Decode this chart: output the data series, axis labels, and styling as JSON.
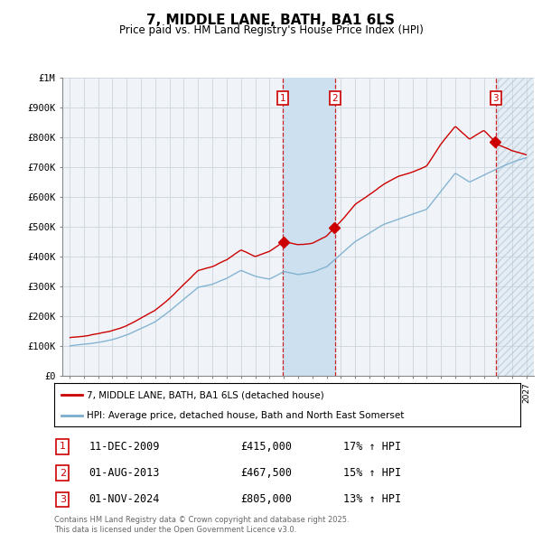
{
  "title": "7, MIDDLE LANE, BATH, BA1 6LS",
  "subtitle": "Price paid vs. HM Land Registry's House Price Index (HPI)",
  "ylim": [
    0,
    1000000
  ],
  "yticks": [
    0,
    100000,
    200000,
    300000,
    400000,
    500000,
    600000,
    700000,
    800000,
    900000,
    1000000
  ],
  "ytick_labels": [
    "£0",
    "£100K",
    "£200K",
    "£300K",
    "£400K",
    "£500K",
    "£600K",
    "£700K",
    "£800K",
    "£900K",
    "£1M"
  ],
  "xlim_start": 1994.5,
  "xlim_end": 2027.5,
  "sale_color": "#cc0000",
  "hpi_color": "#7aadcf",
  "transaction_color": "#cce0f0",
  "background_color": "#f0f4f8",
  "grid_color": "#d0d8e0",
  "transactions": [
    {
      "label": "1",
      "date_num": 2009.95,
      "price": 415000,
      "pct": "17%",
      "date_str": "11-DEC-2009"
    },
    {
      "label": "2",
      "date_num": 2013.58,
      "price": 467500,
      "pct": "15%",
      "date_str": "01-AUG-2013"
    },
    {
      "label": "3",
      "date_num": 2024.83,
      "price": 805000,
      "pct": "13%",
      "date_str": "01-NOV-2024"
    }
  ],
  "legend_line1": "7, MIDDLE LANE, BATH, BA1 6LS (detached house)",
  "legend_line2": "HPI: Average price, detached house, Bath and North East Somerset",
  "footer": "Contains HM Land Registry data © Crown copyright and database right 2025.\nThis data is licensed under the Open Government Licence v3.0."
}
